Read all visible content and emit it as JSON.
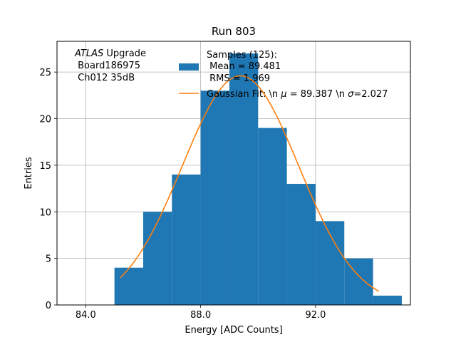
{
  "chart_data": {
    "type": "bar",
    "title": "Run 803",
    "xlabel": "Energy [ADC Counts]",
    "ylabel": "Entries",
    "xlim": [
      83.0,
      95.3
    ],
    "ylim": [
      0,
      28.3
    ],
    "grid": true,
    "x_ticks": [
      {
        "value": 84,
        "label": "84.0"
      },
      {
        "value": 88,
        "label": "88.0"
      },
      {
        "value": 92,
        "label": "92.0"
      }
    ],
    "y_ticks": [
      {
        "value": 0,
        "label": "0"
      },
      {
        "value": 5,
        "label": "5"
      },
      {
        "value": 10,
        "label": "10"
      },
      {
        "value": 15,
        "label": "15"
      },
      {
        "value": 20,
        "label": "20"
      },
      {
        "value": 25,
        "label": "25"
      }
    ],
    "histogram": {
      "name": "Samples (125):\n Mean = 89.481\n RMS = 1.969",
      "color": "#1f77b4",
      "bin_edges": [
        85,
        86,
        87,
        88,
        89,
        90,
        91,
        92,
        93,
        94,
        95
      ],
      "counts": [
        4,
        10,
        14,
        23,
        27,
        19,
        13,
        9,
        5,
        1
      ]
    },
    "fit": {
      "name": "Gaussian Fit: \\n $\\mu$ = 89.387 \\n $\\sigma$=2.027",
      "color": "#ff7f0e",
      "mu": 89.387,
      "sigma": 2.027,
      "amplitude": 24.6,
      "x_range": [
        85.2,
        94.2
      ]
    },
    "annotation": {
      "italic": "ATLAS",
      "line1_rest": " Upgrade",
      "line2": " Board186975",
      "line3": " Ch012 35dB"
    },
    "legend": {
      "placement": "top-center",
      "hist_label_lines": [
        "Samples (125):",
        " Mean = 89.481",
        " RMS = 1.969"
      ],
      "fit_label_prefix": "Gaussian Fit: \\n ",
      "fit_mu_symbol": "μ",
      "fit_mid": " = 89.387 \\n ",
      "fit_sigma_symbol": "σ",
      "fit_suffix": "=2.027"
    }
  }
}
